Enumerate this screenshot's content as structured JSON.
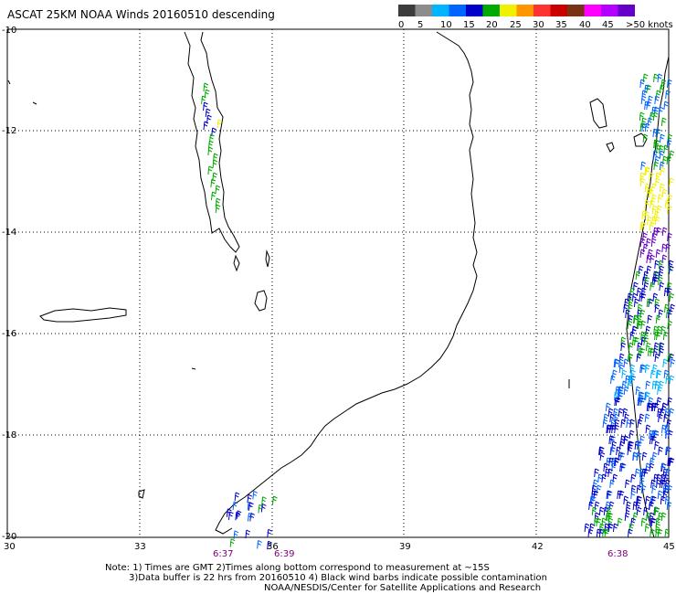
{
  "title": "ASCAT 25KM NOAA Winds 20160510 descending",
  "scale": {
    "labels": [
      "0",
      "5",
      "10",
      "15",
      "20",
      "25",
      "30",
      "35",
      "40",
      "45",
      ">50 knots"
    ],
    "colors": [
      "#3c3c3c",
      "#8c8c8c",
      "#00b4ff",
      "#0064ff",
      "#0000c8",
      "#00aa00",
      "#f0f000",
      "#ff9600",
      "#ff3232",
      "#c80000",
      "#783214",
      "#ff00ff",
      "#b400ff",
      "#6400c8"
    ]
  },
  "axes": {
    "lat_labels": [
      "-10",
      "-12",
      "-14",
      "-16",
      "-18",
      "-20"
    ],
    "lon_labels": [
      "30",
      "33",
      "36",
      "39",
      "42",
      "45"
    ]
  },
  "times": [
    "6:37",
    "6:39",
    "6:38"
  ],
  "notes": [
    "Note: 1) Times are GMT 2)Times along bottom correspond to measurement at ~15S",
    "3)Data buffer is 22 hrs from 20160510 4) Black wind barbs indicate possible contamination",
    "NOAA/NESDIS/Center for Satellite Applications and Research"
  ]
}
